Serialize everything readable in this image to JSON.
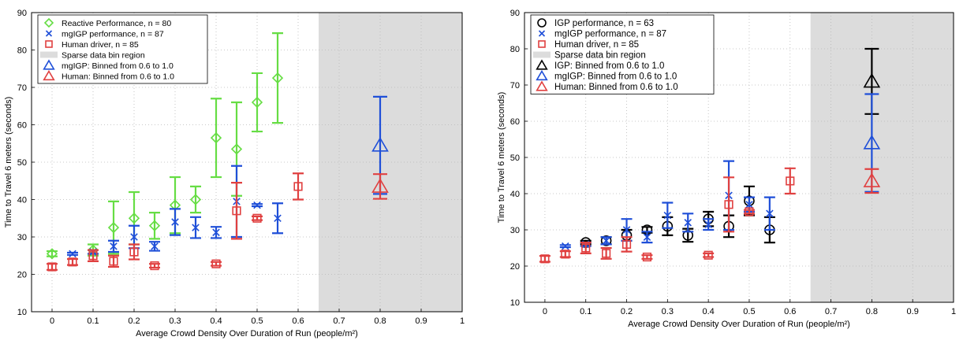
{
  "chart_data": [
    {
      "type": "scatter",
      "title": "",
      "xlabel": "Average Crowd Density Over Duration of Run (people/m²)",
      "ylabel": "Time to Travel 6 meters (seconds)",
      "xlim": [
        -0.05,
        1.0
      ],
      "ylim": [
        10,
        90
      ],
      "xticks": [
        "0",
        "0.1",
        "0.2",
        "0.3",
        "0.4",
        "0.5",
        "0.6",
        "0.7",
        "0.8",
        "0.9",
        "1"
      ],
      "yticks": [
        "10",
        "20",
        "30",
        "40",
        "50",
        "60",
        "70",
        "80",
        "90"
      ],
      "grid": true,
      "sparse_region": [
        0.65,
        1.0
      ],
      "legend": {
        "placement": "top-left",
        "entries": [
          {
            "label": "Reactive Performance, n = 80",
            "marker": "diamond",
            "color": "#66dd44"
          },
          {
            "label": "mgIGP performance, n = 87",
            "marker": "x",
            "color": "#1f4fd8"
          },
          {
            "label": "Human driver, n = 85",
            "marker": "square",
            "color": "#e04040"
          },
          {
            "label": "Sparse data bin region",
            "marker": "band",
            "color": "#dcdcdc"
          },
          {
            "label": "mgIGP: Binned from 0.6 to 1.0",
            "marker": "triangle",
            "color": "#1f4fd8"
          },
          {
            "label": "Human: Binned from 0.6 to 1.0",
            "marker": "triangle",
            "color": "#e04040"
          }
        ]
      },
      "series": [
        {
          "name": "Reactive Performance, n = 80",
          "marker": "diamond",
          "color": "#66dd44",
          "x": [
            0,
            0.1,
            0.15,
            0.2,
            0.25,
            0.3,
            0.35,
            0.4,
            0.45,
            0.5,
            0.55
          ],
          "y": [
            25.5,
            26.5,
            32.5,
            35,
            33,
            38.5,
            40,
            56.5,
            53.5,
            66,
            72.5
          ],
          "err": [
            0.7,
            1.5,
            7,
            7,
            3.5,
            7.5,
            3.5,
            10.5,
            12.5,
            7.8,
            12
          ]
        },
        {
          "name": "mgIGP performance, n = 87",
          "marker": "x",
          "color": "#1f4fd8",
          "x": [
            0.05,
            0.1,
            0.15,
            0.2,
            0.25,
            0.3,
            0.35,
            0.4,
            0.45,
            0.5,
            0.55
          ],
          "y": [
            25.5,
            26,
            27.5,
            30,
            27.5,
            34,
            32.5,
            31.2,
            39.5,
            38.5,
            35
          ],
          "err": [
            0.3,
            0.5,
            1.5,
            3,
            1.2,
            3.5,
            2.8,
            1.5,
            9.5,
            0.3,
            4
          ]
        },
        {
          "name": "Human driver, n = 85",
          "marker": "square",
          "color": "#e04040",
          "x": [
            0,
            0.05,
            0.1,
            0.15,
            0.2,
            0.25,
            0.4,
            0.45,
            0.5,
            0.6
          ],
          "y": [
            22,
            23.3,
            25,
            23.5,
            26,
            22.3,
            22.8,
            37,
            35,
            43.5
          ],
          "err": [
            0.8,
            0.8,
            1.5,
            1.5,
            2,
            0.5,
            0.5,
            7.5,
            0.5,
            3.5
          ]
        },
        {
          "name": "mgIGP: Binned from 0.6 to 1.0",
          "marker": "triangle",
          "color": "#1f4fd8",
          "x": [
            0.8
          ],
          "y": [
            54.5
          ],
          "err": [
            13
          ]
        },
        {
          "name": "Human: Binned from 0.6 to 1.0",
          "marker": "triangle",
          "color": "#e04040",
          "x": [
            0.8
          ],
          "y": [
            43.5
          ],
          "err": [
            3.3
          ]
        }
      ]
    },
    {
      "type": "scatter",
      "title": "",
      "xlabel": "Average Crowd Density Over Duration of Run (people/m²)",
      "ylabel": "Time to Travel 6 meters (seconds)",
      "xlim": [
        -0.05,
        1.0
      ],
      "ylim": [
        10,
        90
      ],
      "xticks": [
        "0",
        "0.1",
        "0.2",
        "0.3",
        "0.4",
        "0.5",
        "0.6",
        "0.7",
        "0.8",
        "0.9",
        "1"
      ],
      "yticks": [
        "10",
        "20",
        "30",
        "40",
        "50",
        "60",
        "70",
        "80",
        "90"
      ],
      "grid": true,
      "sparse_region": [
        0.65,
        1.0
      ],
      "legend": {
        "placement": "top-left",
        "entries": [
          {
            "label": "IGP performance, n = 63",
            "marker": "circle",
            "color": "#000000"
          },
          {
            "label": "mgIGP performance, n = 87",
            "marker": "x",
            "color": "#1f4fd8"
          },
          {
            "label": "Human driver, n = 85",
            "marker": "square",
            "color": "#e04040"
          },
          {
            "label": "Sparse data bin region",
            "marker": "band",
            "color": "#dcdcdc"
          },
          {
            "label": "IGP: Binned from 0.6 to 1.0",
            "marker": "triangle",
            "color": "#000000"
          },
          {
            "label": "mgIGP: Binned from 0.6 to 1.0",
            "marker": "triangle",
            "color": "#1f4fd8"
          },
          {
            "label": "Human: Binned from 0.6 to 1.0",
            "marker": "triangle",
            "color": "#e04040"
          }
        ]
      },
      "series": [
        {
          "name": "IGP performance, n = 63",
          "marker": "circle",
          "color": "#000000",
          "x": [
            0.1,
            0.15,
            0.2,
            0.25,
            0.3,
            0.35,
            0.4,
            0.45,
            0.5,
            0.55
          ],
          "y": [
            26.5,
            27,
            28.5,
            30,
            31,
            28.5,
            33,
            31,
            38,
            30
          ],
          "err": [
            0.5,
            1,
            1.5,
            0.8,
            2.5,
            1.8,
            2,
            3,
            4,
            3.5
          ]
        },
        {
          "name": "mgIGP performance, n = 87",
          "marker": "x",
          "color": "#1f4fd8",
          "x": [
            0.05,
            0.1,
            0.15,
            0.2,
            0.25,
            0.3,
            0.35,
            0.4,
            0.45,
            0.5,
            0.55
          ],
          "y": [
            25.5,
            26,
            27,
            30,
            28,
            34,
            32,
            31.5,
            39.5,
            37,
            34.5
          ],
          "err": [
            0.3,
            0.5,
            1,
            3,
            1.5,
            3.5,
            2.5,
            1.5,
            9.5,
            2,
            4.5
          ]
        },
        {
          "name": "Human driver, n = 85",
          "marker": "square",
          "color": "#e04040",
          "x": [
            0,
            0.05,
            0.1,
            0.15,
            0.2,
            0.25,
            0.4,
            0.45,
            0.5,
            0.6
          ],
          "y": [
            22,
            23.3,
            25,
            23.5,
            26,
            22.5,
            23,
            37,
            35,
            43.5
          ],
          "err": [
            0.8,
            0.8,
            1.5,
            1.5,
            2,
            0.5,
            0.5,
            7.5,
            0.5,
            3.5
          ]
        },
        {
          "name": "IGP: Binned from 0.6 to 1.0",
          "marker": "triangle",
          "color": "#000000",
          "x": [
            0.8
          ],
          "y": [
            71
          ],
          "err": [
            9
          ]
        },
        {
          "name": "mgIGP: Binned from 0.6 to 1.0",
          "marker": "triangle",
          "color": "#1f4fd8",
          "x": [
            0.8
          ],
          "y": [
            54
          ],
          "err": [
            13.5
          ]
        },
        {
          "name": "Human: Binned from 0.6 to 1.0",
          "marker": "triangle",
          "color": "#e04040",
          "x": [
            0.8
          ],
          "y": [
            43.5
          ],
          "err": [
            3.3
          ]
        }
      ]
    }
  ]
}
